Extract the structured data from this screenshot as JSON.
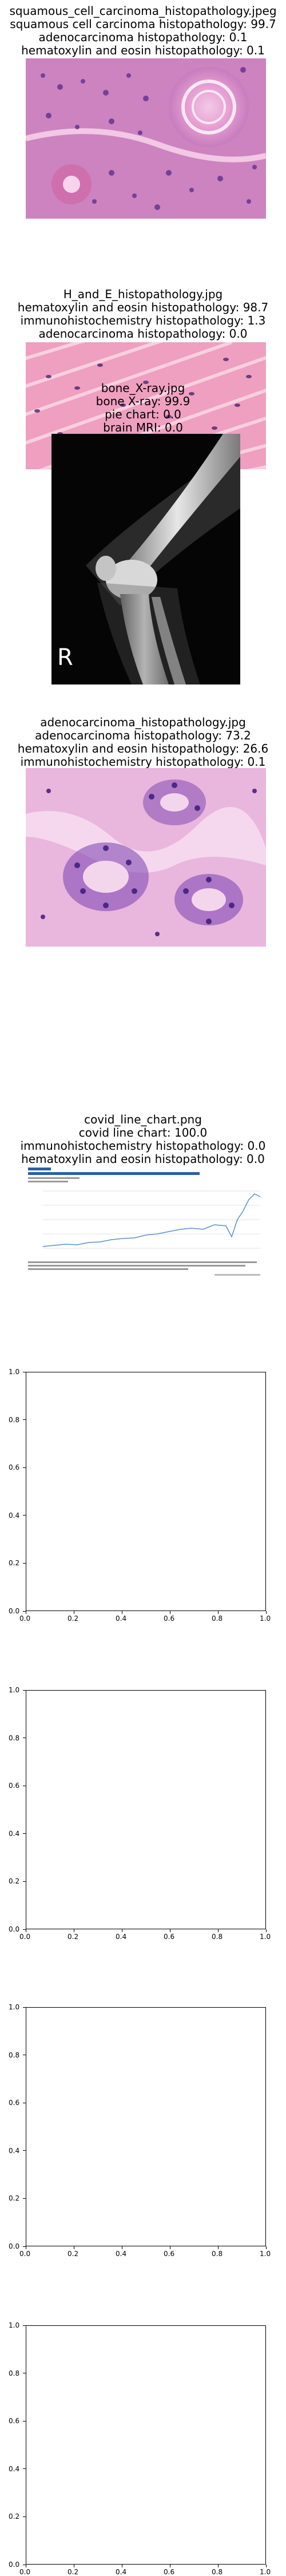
{
  "panels": [
    {
      "filename": "squamous_cell_carcinoma_histopathology.jpeg",
      "lines": [
        "squamous cell carcinoma histopathology: 99.7",
        "adenocarcinoma histopathology: 0.1",
        "hematoxylin and eosin histopathology: 0.1"
      ],
      "image_icon": "squamous-cell-histology-image"
    },
    {
      "filename": "H_and_E_histopathology.jpg",
      "lines": [
        "hematoxylin and eosin histopathology: 98.7",
        "immunohistochemistry histopathology: 1.3",
        "adenocarcinoma histopathology: 0.0"
      ],
      "image_icon": "muscle-tissue-he-image"
    },
    {
      "filename": "bone_X-ray.jpg",
      "lines": [
        "bone X-ray: 99.9",
        "pie chart: 0.0",
        "brain MRI: 0.0"
      ],
      "image_icon": "knee-xray-image",
      "xray_marker": "R"
    },
    {
      "filename": "adenocarcinoma_histopathology.jpg",
      "lines": [
        "adenocarcinoma histopathology: 73.2",
        "hematoxylin and eosin histopathology: 26.6",
        "immunohistochemistry histopathology: 0.1"
      ],
      "image_icon": "adenocarcinoma-gland-image"
    },
    {
      "filename": "covid_line_chart.png",
      "lines": [
        "covid line chart: 100.0",
        "immunohistochemistry histopathology: 0.0",
        "hematoxylin and eosin histopathology: 0.0"
      ],
      "image_icon": "covid-line-chart-thumbnail"
    }
  ],
  "empty_axes": {
    "x_ticks": [
      "0.0",
      "0.2",
      "0.4",
      "0.6",
      "0.8",
      "1.0"
    ],
    "y_ticks": [
      "0.0",
      "0.2",
      "0.4",
      "0.6",
      "0.8",
      "1.0"
    ]
  }
}
